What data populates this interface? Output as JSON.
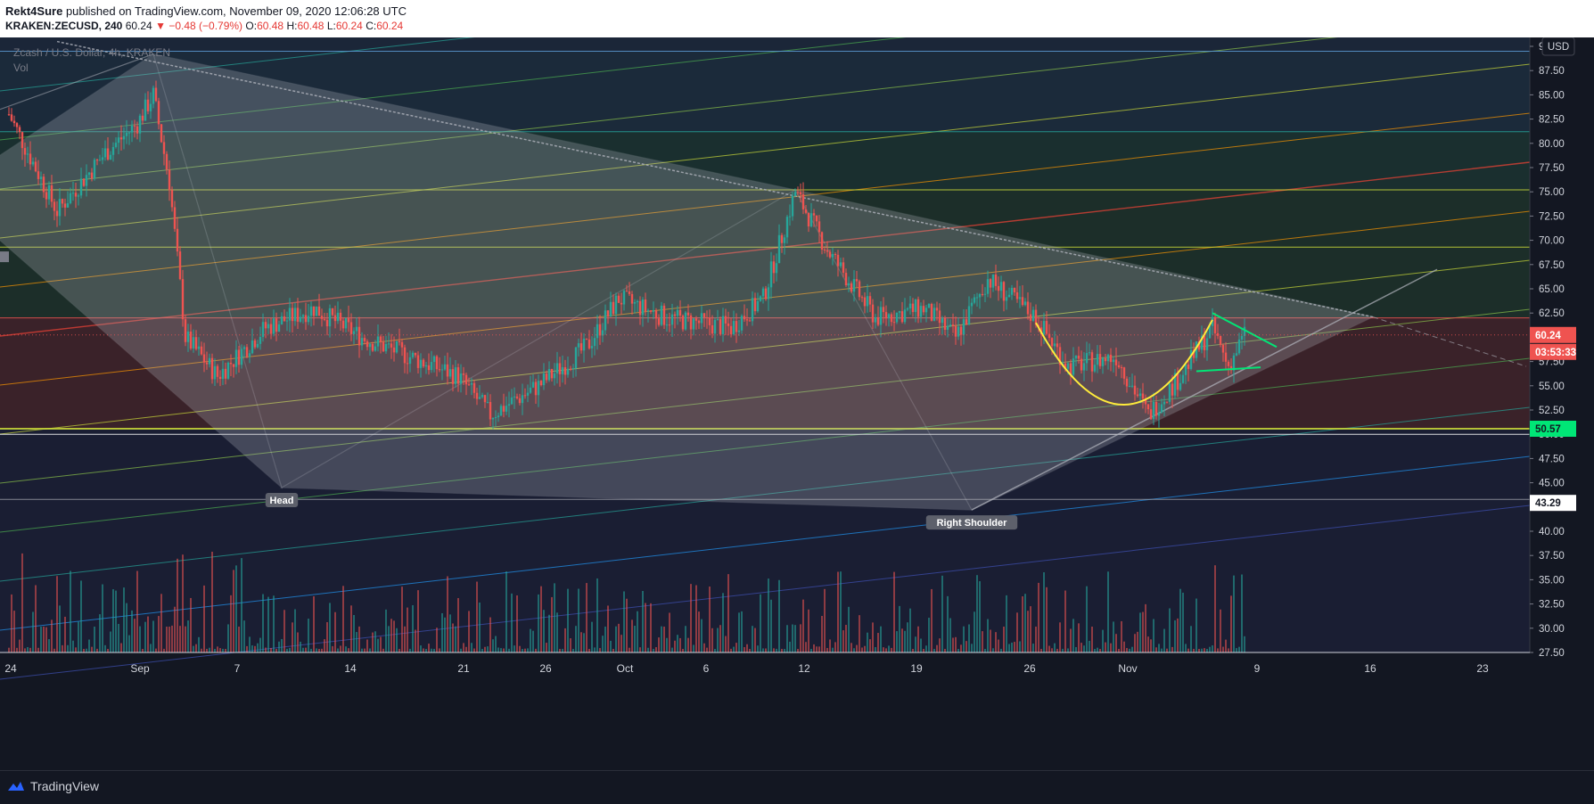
{
  "header": {
    "author": "Rekt4Sure",
    "published_text": "published on TradingView.com, November 09, 2020 12:06:28 UTC",
    "symbol": "KRAKEN:ZECUSD, 240",
    "last": "60.24",
    "change_arrow": "▼",
    "change": "−0.48 (−0.79%)",
    "o_label": "O:",
    "o_value": "60.48",
    "h_label": "H:",
    "h_value": "60.48",
    "l_label": "L:",
    "l_value": "60.24",
    "c_label": "C:",
    "c_value": "60.24"
  },
  "legend": {
    "instrument": "Zcash / U.S. Dollar, 4h, KRAKEN",
    "volume": "Vol"
  },
  "currency": "USD",
  "badges": {
    "price": "60.24",
    "countdown": "03:53:33",
    "support": "50.57",
    "neckline": "43.29"
  },
  "annotations": {
    "head": "Head",
    "right_shoulder": "Right Shoulder"
  },
  "footer": {
    "brand": "TradingView"
  },
  "colors": {
    "background": "#131722",
    "up": "#26a69a",
    "down": "#ef5350",
    "resistance_zone": "#ef5350",
    "support_line": "#cddc39",
    "cup_curve": "#ffeb3b",
    "flag_lines": "#00e676",
    "pattern_fill": "#b2b5be"
  },
  "chart_data": {
    "type": "candlestick",
    "title": "Zcash / U.S. Dollar, 4h, KRAKEN",
    "y_axis": {
      "position": "right",
      "ticks": [
        "27.50",
        "30.00",
        "32.50",
        "35.00",
        "37.50",
        "40.00",
        "42.50",
        "45.00",
        "47.50",
        "50.00",
        "52.50",
        "55.00",
        "57.50",
        "60.00",
        "62.50",
        "65.00",
        "67.50",
        "70.00",
        "72.50",
        "75.00",
        "77.50",
        "80.00",
        "82.50",
        "85.00",
        "87.50",
        "90.00"
      ],
      "range": [
        27.5,
        91
      ]
    },
    "x_axis": {
      "ticks": [
        "24",
        "Sep",
        "7",
        "14",
        "21",
        "26",
        "Oct",
        "6",
        "12",
        "19",
        "26",
        "Nov",
        "9",
        "16",
        "23"
      ]
    },
    "price_path": [
      {
        "date": "2020-08-24",
        "close": 83
      },
      {
        "date": "2020-08-27",
        "close": 73
      },
      {
        "date": "2020-08-30",
        "close": 79
      },
      {
        "date": "2020-09-01",
        "close": 82
      },
      {
        "date": "2020-09-02",
        "close": 85
      },
      {
        "date": "2020-09-03",
        "close": 76
      },
      {
        "date": "2020-09-04",
        "close": 60
      },
      {
        "date": "2020-09-06",
        "close": 56
      },
      {
        "date": "2020-09-09",
        "close": 61
      },
      {
        "date": "2020-09-12",
        "close": 63
      },
      {
        "date": "2020-09-15",
        "close": 60
      },
      {
        "date": "2020-09-18",
        "close": 58
      },
      {
        "date": "2020-09-21",
        "close": 56
      },
      {
        "date": "2020-09-23",
        "close": 52
      },
      {
        "date": "2020-09-26",
        "close": 55
      },
      {
        "date": "2020-09-29",
        "close": 59
      },
      {
        "date": "2020-10-01",
        "close": 64
      },
      {
        "date": "2020-10-04",
        "close": 62
      },
      {
        "date": "2020-10-08",
        "close": 61
      },
      {
        "date": "2020-10-10",
        "close": 64
      },
      {
        "date": "2020-10-12",
        "close": 75
      },
      {
        "date": "2020-10-14",
        "close": 69
      },
      {
        "date": "2020-10-17",
        "close": 62
      },
      {
        "date": "2020-10-20",
        "close": 63
      },
      {
        "date": "2020-10-22",
        "close": 60
      },
      {
        "date": "2020-10-24",
        "close": 66
      },
      {
        "date": "2020-10-27",
        "close": 62
      },
      {
        "date": "2020-10-29",
        "close": 57
      },
      {
        "date": "2020-11-01",
        "close": 58
      },
      {
        "date": "2020-11-03",
        "close": 52
      },
      {
        "date": "2020-11-05",
        "close": 56
      },
      {
        "date": "2020-11-07",
        "close": 61
      },
      {
        "date": "2020-11-08",
        "close": 57
      },
      {
        "date": "2020-11-09",
        "close": 60.24
      }
    ],
    "horizontal_levels": [
      89.5,
      81.2,
      75.2,
      69.3,
      62.0,
      50.57,
      50.0,
      43.29
    ],
    "resistance_zone": [
      50.57,
      62.0
    ],
    "last_price": 60.24,
    "grid": false,
    "volume_pane": true
  }
}
